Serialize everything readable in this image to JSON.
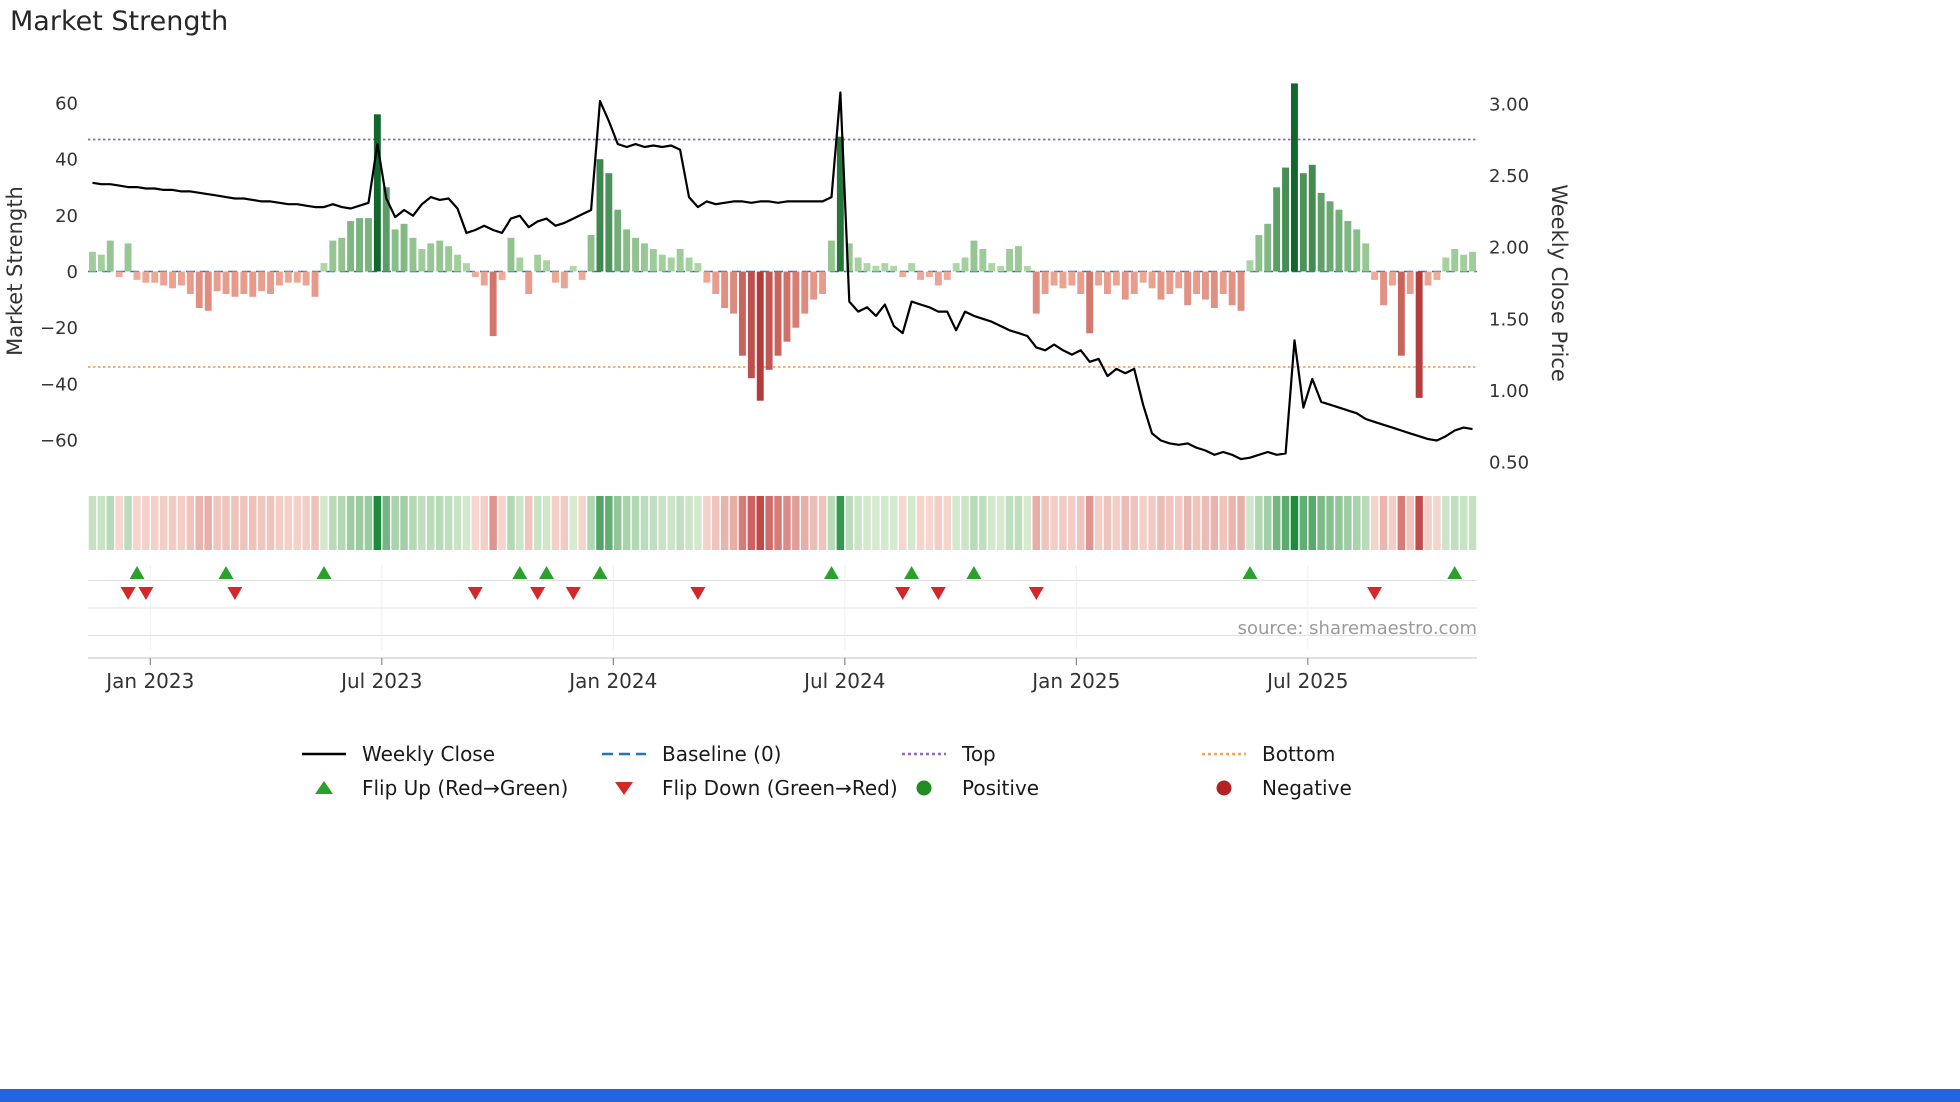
{
  "title": "Market Strength",
  "source": "source: sharemaestro.com",
  "legend": {
    "rows": [
      [
        {
          "label": "Weekly Close"
        },
        {
          "label": "Baseline (0)"
        },
        {
          "label": "Top"
        },
        {
          "label": "Bottom"
        }
      ],
      [
        {
          "label": "Flip Up (Red→Green)"
        },
        {
          "label": "Flip Down (Green→Red)"
        },
        {
          "label": "Positive"
        },
        {
          "label": "Negative"
        }
      ]
    ]
  },
  "chart_data": {
    "type": "combo",
    "title": "Market Strength",
    "x_ticks": [
      {
        "label": "Jan 2023",
        "week": 6.5
      },
      {
        "label": "Jul 2023",
        "week": 32.5
      },
      {
        "label": "Jan 2024",
        "week": 58.5
      },
      {
        "label": "Jul 2024",
        "week": 84.5
      },
      {
        "label": "Jan 2025",
        "week": 110.5
      },
      {
        "label": "Jul 2025",
        "week": 136.5
      }
    ],
    "left_axis": {
      "label": "Market Strength",
      "ticks": [
        60,
        40,
        20,
        0,
        -20,
        -40,
        -60
      ],
      "ylim": [
        -70,
        70
      ]
    },
    "right_axis": {
      "label": "Weekly Close Price",
      "ticks": [
        "3.00",
        "2.50",
        "2.00",
        "1.50",
        "1.00",
        "0.50"
      ],
      "ylim": [
        0.44,
        3.2
      ]
    },
    "reference_lines": {
      "baseline": 0,
      "top": 47,
      "bottom": -34
    },
    "series": [
      {
        "name": "Market Strength",
        "type": "bar",
        "axis": "left",
        "values": [
          7,
          6,
          11,
          -2,
          10,
          -3,
          -4,
          -4,
          -5,
          -6,
          -5,
          -8,
          -13,
          -14,
          -7,
          -8,
          -9,
          -8,
          -9,
          -7,
          -8,
          -5,
          -4,
          -4,
          -5,
          -9,
          3,
          11,
          12,
          18,
          19,
          19,
          56,
          30,
          15,
          17,
          12,
          8,
          10,
          11,
          9,
          6,
          3,
          -2,
          -5,
          -23,
          -3,
          12,
          5,
          -8,
          6,
          4,
          -4,
          -6,
          2,
          -3,
          13,
          40,
          35,
          22,
          15,
          12,
          10,
          8,
          6,
          5,
          8,
          5,
          3,
          -4,
          -8,
          -13,
          -15,
          -30,
          -38,
          -46,
          -35,
          -30,
          -25,
          -20,
          -15,
          -10,
          -8,
          11,
          48,
          10,
          5,
          3,
          2,
          3,
          2,
          -2,
          3,
          -3,
          -2,
          -5,
          -3,
          3,
          5,
          11,
          8,
          3,
          2,
          8,
          9,
          2,
          -15,
          -8,
          -5,
          -6,
          -5,
          -8,
          -22,
          -5,
          -8,
          -5,
          -10,
          -8,
          -4,
          -6,
          -10,
          -8,
          -6,
          -12,
          -8,
          -10,
          -13,
          -8,
          -12,
          -14,
          4,
          13,
          17,
          30,
          37,
          67,
          35,
          38,
          28,
          25,
          22,
          18,
          15,
          10,
          -3,
          -12,
          -5,
          -30,
          -8,
          -45,
          -5,
          -3,
          5,
          8,
          6,
          7
        ]
      },
      {
        "name": "Weekly Close",
        "type": "line",
        "axis": "right",
        "values": [
          2.45,
          2.44,
          2.44,
          2.43,
          2.42,
          2.42,
          2.41,
          2.41,
          2.4,
          2.4,
          2.39,
          2.39,
          2.38,
          2.37,
          2.36,
          2.35,
          2.34,
          2.34,
          2.33,
          2.32,
          2.32,
          2.31,
          2.3,
          2.3,
          2.29,
          2.28,
          2.28,
          2.3,
          2.28,
          2.27,
          2.29,
          2.31,
          2.72,
          2.34,
          2.21,
          2.26,
          2.22,
          2.3,
          2.35,
          2.33,
          2.34,
          2.27,
          2.1,
          2.12,
          2.15,
          2.12,
          2.1,
          2.2,
          2.22,
          2.14,
          2.18,
          2.2,
          2.15,
          2.17,
          2.2,
          2.23,
          2.26,
          3.02,
          2.88,
          2.72,
          2.7,
          2.72,
          2.7,
          2.71,
          2.7,
          2.71,
          2.68,
          2.35,
          2.28,
          2.32,
          2.3,
          2.31,
          2.32,
          2.32,
          2.31,
          2.32,
          2.32,
          2.31,
          2.32,
          2.32,
          2.32,
          2.32,
          2.32,
          2.35,
          3.08,
          1.62,
          1.55,
          1.58,
          1.52,
          1.6,
          1.45,
          1.4,
          1.62,
          1.6,
          1.58,
          1.55,
          1.55,
          1.42,
          1.55,
          1.52,
          1.5,
          1.48,
          1.45,
          1.42,
          1.4,
          1.38,
          1.3,
          1.28,
          1.32,
          1.28,
          1.25,
          1.28,
          1.2,
          1.22,
          1.1,
          1.15,
          1.12,
          1.15,
          0.9,
          0.7,
          0.65,
          0.63,
          0.62,
          0.63,
          0.6,
          0.58,
          0.55,
          0.57,
          0.55,
          0.52,
          0.53,
          0.55,
          0.57,
          0.55,
          0.56,
          1.35,
          0.88,
          1.08,
          0.92,
          0.9,
          0.88,
          0.86,
          0.84,
          0.8,
          0.78,
          0.76,
          0.74,
          0.72,
          0.7,
          0.68,
          0.66,
          0.65,
          0.68,
          0.72,
          0.74,
          0.73
        ]
      }
    ],
    "flip_up_weeks": [
      5,
      15,
      26,
      48,
      51,
      57,
      83,
      92,
      99,
      130,
      153
    ],
    "flip_down_weeks": [
      4,
      6,
      16,
      43,
      50,
      54,
      68,
      91,
      95,
      106,
      144
    ],
    "heatmap_source": "strength-values",
    "colors": {
      "line": "#000000",
      "baseline": "#1f77b4",
      "top": "#9467bd",
      "bottom": "#f4a460",
      "flip_up": "#2ca02c",
      "flip_down": "#d62728",
      "positive": "#228b22",
      "negative": "#b22222",
      "bar_green_light": "#b5dcab",
      "bar_green_dark": "#11672c",
      "bar_red_light": "#f2b19e",
      "bar_red_dark": "#b23b3b",
      "heat_green_light": "#ddeed6",
      "heat_green_dark": "#1e8a3c",
      "heat_red_light": "#f8ded5",
      "heat_red_dark": "#c34848"
    }
  }
}
